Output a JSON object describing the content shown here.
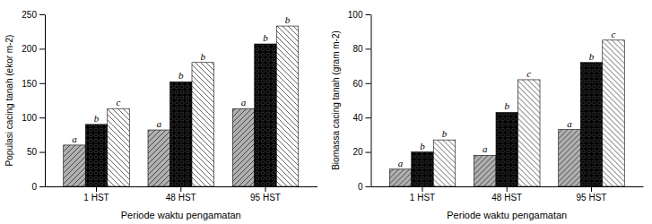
{
  "chart_data": [
    {
      "type": "bar",
      "xlabel": "Periode waktu pengamatan",
      "ylabel": "Populasi cacing tanah (ekor m-2)",
      "categories": [
        "1 HST",
        "48 HST",
        "95 HST"
      ],
      "series": [
        {
          "color": "#b0b0b0",
          "values": [
            60,
            82,
            113
          ],
          "letters": [
            "a",
            "a",
            "a"
          ]
        },
        {
          "color": "#000000",
          "values": [
            90,
            152,
            207
          ],
          "letters": [
            "b",
            "b",
            "b"
          ]
        },
        {
          "color": "#ffffff",
          "values": [
            113,
            180,
            233
          ],
          "letters": [
            "c",
            "b",
            "b"
          ]
        }
      ],
      "ylim": [
        0,
        250
      ],
      "yticks": [
        0,
        50,
        100,
        150,
        200,
        250
      ],
      "grid": false
    },
    {
      "type": "bar",
      "xlabel": "Periode waktu pengamatan",
      "ylabel": "Biomassa cacing tanah (gram m-2)",
      "categories": [
        "1 HST",
        "48 HST",
        "95 HST"
      ],
      "series": [
        {
          "color": "#b0b0b0",
          "values": [
            10,
            18,
            33
          ],
          "letters": [
            "a",
            "a",
            "a"
          ]
        },
        {
          "color": "#000000",
          "values": [
            20,
            43,
            72
          ],
          "letters": [
            "b",
            "b",
            "b"
          ]
        },
        {
          "color": "#ffffff",
          "values": [
            27,
            62,
            85
          ],
          "letters": [
            "b",
            "c",
            "c"
          ]
        }
      ],
      "ylim": [
        0,
        100
      ],
      "yticks": [
        0,
        20,
        40,
        60,
        80,
        100
      ],
      "grid": false
    }
  ]
}
